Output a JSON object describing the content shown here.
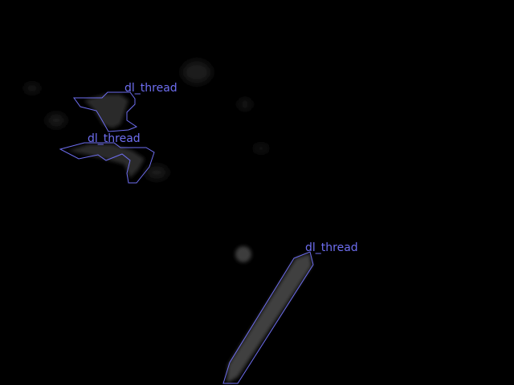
{
  "colors": {
    "background": "#000000",
    "annotation": "#6e6ef0",
    "blob_fill": "#3a3a3a",
    "blob_glow": "#1e1e1e"
  },
  "regions": [
    {
      "label": "dl_thread"
    },
    {
      "label": "dl_thread"
    },
    {
      "label": "dl_thread"
    }
  ]
}
